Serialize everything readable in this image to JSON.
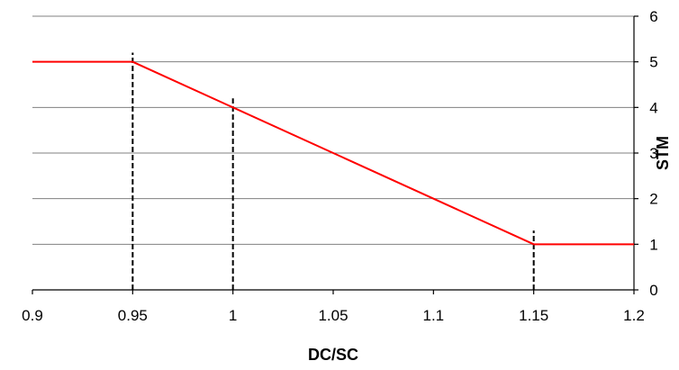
{
  "chart_data": {
    "type": "line",
    "title": "",
    "xlabel": "DC/SC",
    "ylabel": "STM",
    "xlim": [
      0.9,
      1.2
    ],
    "ylim": [
      0,
      6
    ],
    "xticks": [
      0.9,
      0.95,
      1.0,
      1.05,
      1.1,
      1.15,
      1.2
    ],
    "xtick_labels": [
      "0.9",
      "0.95",
      "1",
      "1.05",
      "1.1",
      "1.15",
      "1.2"
    ],
    "yticks": [
      0,
      1,
      2,
      3,
      4,
      5,
      6
    ],
    "ytick_labels": [
      "0",
      "1",
      "2",
      "3",
      "4",
      "5",
      "6"
    ],
    "y_axis_side": "right",
    "grid": "horizontal",
    "legend": "none",
    "series": [
      {
        "color": "#ff0000",
        "x": [
          0.9,
          0.95,
          1.0,
          1.15,
          1.2
        ],
        "y": [
          5,
          5,
          4,
          1,
          1
        ]
      }
    ],
    "reference_lines": [
      {
        "x": 0.95,
        "y_top": 5.2,
        "style": "dashed"
      },
      {
        "x": 1.0,
        "y_top": 4.2,
        "style": "dashed"
      },
      {
        "x": 1.15,
        "y_top": 1.3,
        "style": "dashed"
      }
    ],
    "colors": {
      "line": "#ff0000",
      "grid": "#808080",
      "axis": "#000000",
      "reference": "#000000"
    }
  }
}
